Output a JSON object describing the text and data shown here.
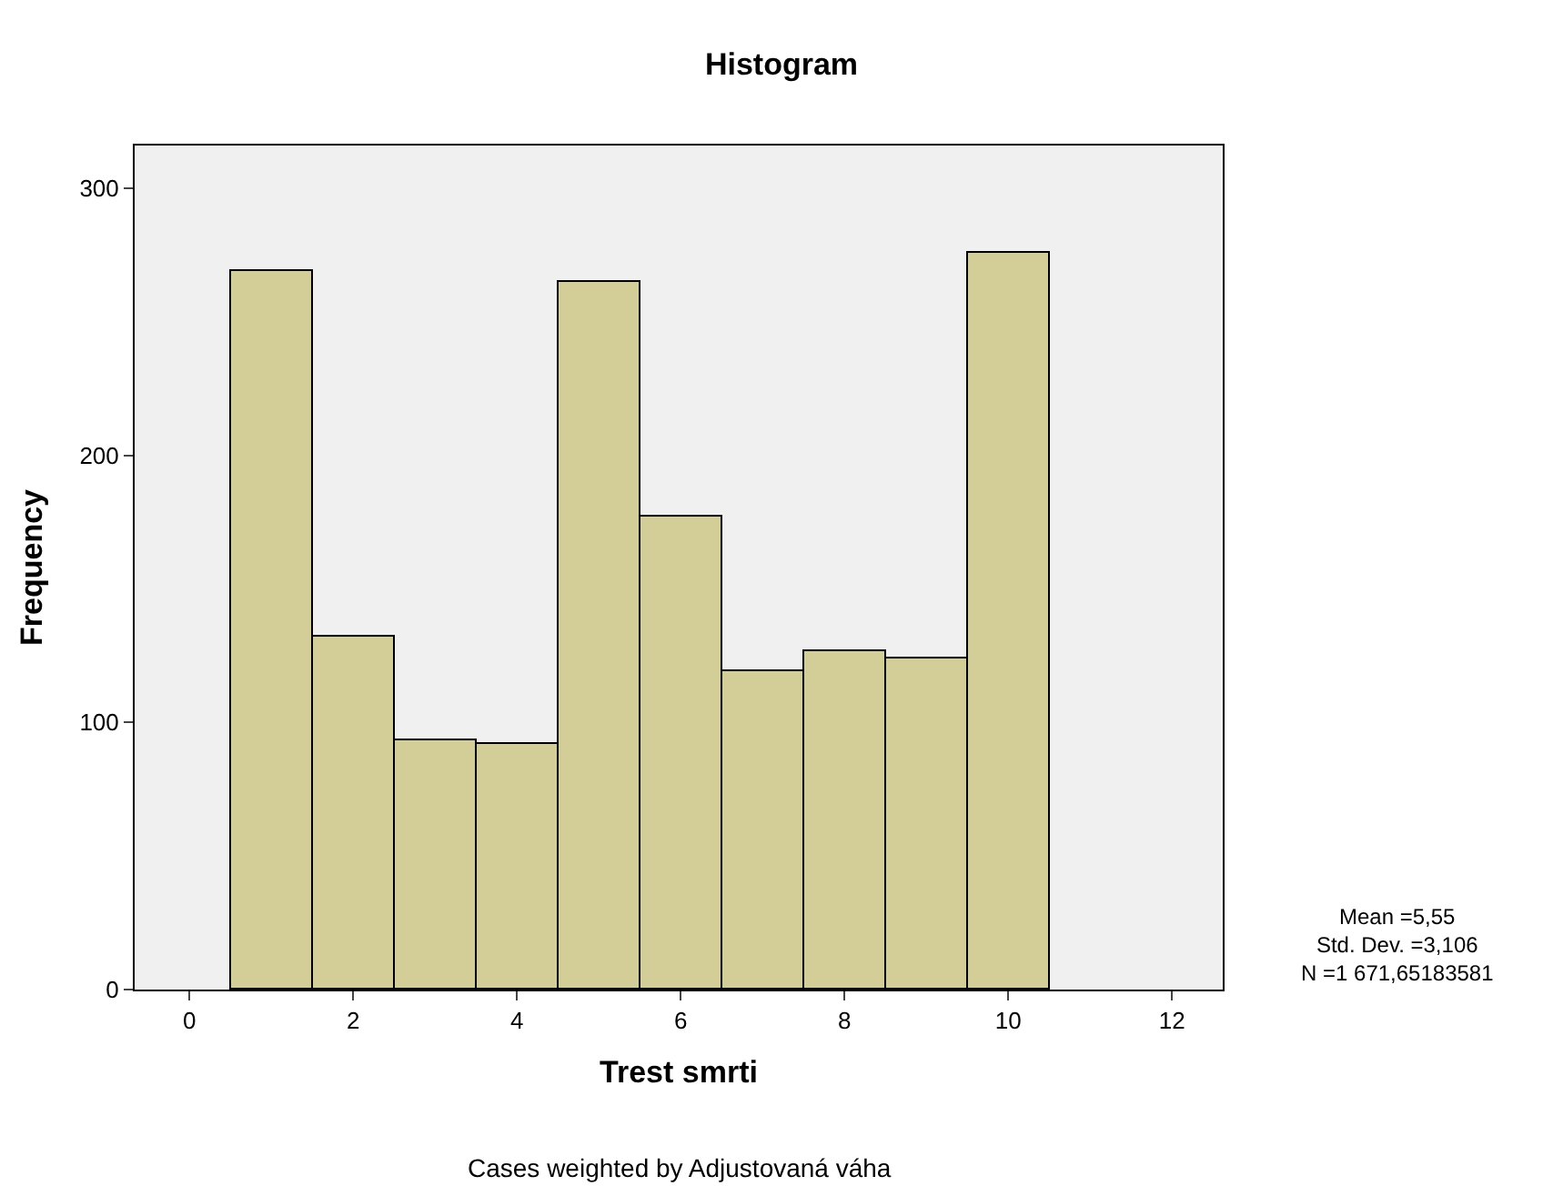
{
  "chart_data": {
    "type": "histogram",
    "title": "Histogram",
    "xlabel": "Trest smrti",
    "ylabel": "Frequency",
    "bins": [
      0.5,
      1.5,
      2.5,
      3.5,
      4.5,
      5.5,
      6.5,
      7.5,
      8.5,
      9.5,
      10.5
    ],
    "values": [
      269,
      132,
      93,
      92,
      265,
      177,
      119,
      127,
      124,
      276
    ],
    "color": "#d3ce97",
    "xlim": [
      -0.67,
      12.62
    ],
    "xticks": [
      0,
      2,
      4,
      6,
      8,
      10,
      12
    ],
    "ylim": [
      0,
      316
    ],
    "yticks": [
      0,
      100,
      200,
      300
    ],
    "grid": false,
    "annotations": [
      "Mean =5,55\nStd. Dev. =3,106\nN =1 671,65183581",
      "Cases weighted by Adjustovaná váha"
    ]
  }
}
